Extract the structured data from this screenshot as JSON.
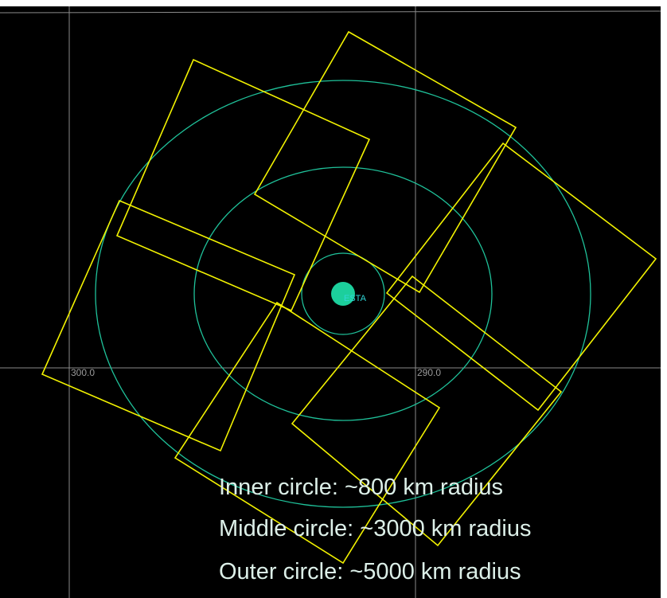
{
  "grid_labels": [
    "300.0",
    "290.0"
  ],
  "station": {
    "label": "ESTA"
  },
  "annotations": [
    "Inner circle: ~800 km radius",
    "Middle circle: ~3000 km radius",
    "Outer circle: ~5000 km radius"
  ]
}
